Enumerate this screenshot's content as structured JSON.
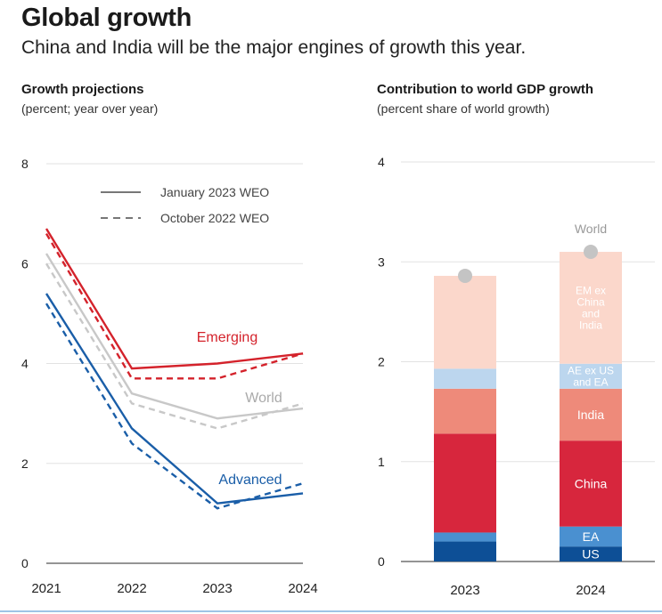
{
  "title": "Global growth",
  "subtitle": "China and India will be the major engines of growth this year.",
  "colors": {
    "emerging": "#d4222b",
    "emerging_dashed": "#d4222b",
    "world": "#c8c8c8",
    "advanced": "#1a5ea8",
    "us": "#0d4f96",
    "ea": "#4a90d0",
    "china": "#d7263d",
    "india": "#ee8a7a",
    "ae_ex": "#bcd6ee",
    "em_ex": "#fbd7cb",
    "world_dot": "#c4c4c4"
  },
  "chart_data": [
    {
      "type": "line",
      "title": "Growth projections",
      "subtitle": "(percent; year over year)",
      "x": [
        "2021",
        "2022",
        "2023",
        "2024"
      ],
      "ylim": [
        0,
        8
      ],
      "yticks": [
        "0",
        "2",
        "4",
        "6",
        "8"
      ],
      "grid": true,
      "legend": {
        "placement": "top-right",
        "entries": [
          {
            "label": "January 2023 WEO",
            "style": "solid"
          },
          {
            "label": "October 2022 WEO",
            "style": "dashed"
          }
        ]
      },
      "series": [
        {
          "name": "Emerging",
          "key": "emerging",
          "style": "solid",
          "values": [
            6.7,
            3.9,
            4.0,
            4.2
          ]
        },
        {
          "name": "Emerging",
          "key": "emerging",
          "style": "dashed",
          "values": [
            6.6,
            3.7,
            3.7,
            4.2
          ]
        },
        {
          "name": "World",
          "key": "world",
          "style": "solid",
          "values": [
            6.2,
            3.4,
            2.9,
            3.1
          ]
        },
        {
          "name": "World",
          "key": "world",
          "style": "dashed",
          "values": [
            6.0,
            3.2,
            2.7,
            3.2
          ]
        },
        {
          "name": "Advanced",
          "key": "advanced",
          "style": "solid",
          "values": [
            5.4,
            2.7,
            1.2,
            1.4
          ]
        },
        {
          "name": "Advanced",
          "key": "advanced",
          "style": "dashed",
          "values": [
            5.2,
            2.4,
            1.1,
            1.6
          ]
        }
      ],
      "series_labels": {
        "emerging": "Emerging",
        "world": "World",
        "advanced": "Advanced"
      }
    },
    {
      "type": "bar",
      "stacked": true,
      "title": "Contribution to world GDP growth",
      "subtitle": "(percent share of world growth)",
      "categories": [
        "2023",
        "2024"
      ],
      "ylim": [
        0,
        4
      ],
      "yticks": [
        "0",
        "1",
        "2",
        "3",
        "4"
      ],
      "grid": true,
      "series": [
        {
          "name": "US",
          "key": "us",
          "values": [
            0.2,
            0.15
          ]
        },
        {
          "name": "EA",
          "key": "ea",
          "values": [
            0.09,
            0.2
          ]
        },
        {
          "name": "China",
          "key": "china",
          "values": [
            0.99,
            0.86
          ]
        },
        {
          "name": "India",
          "key": "india",
          "values": [
            0.45,
            0.52
          ]
        },
        {
          "name": "AE ex US and EA",
          "key": "ae_ex",
          "values": [
            0.2,
            0.25
          ]
        },
        {
          "name": "EM ex China and India",
          "key": "em_ex",
          "values": [
            0.93,
            1.12
          ]
        }
      ],
      "world": {
        "label": "World",
        "values": [
          2.86,
          3.1
        ]
      }
    }
  ]
}
